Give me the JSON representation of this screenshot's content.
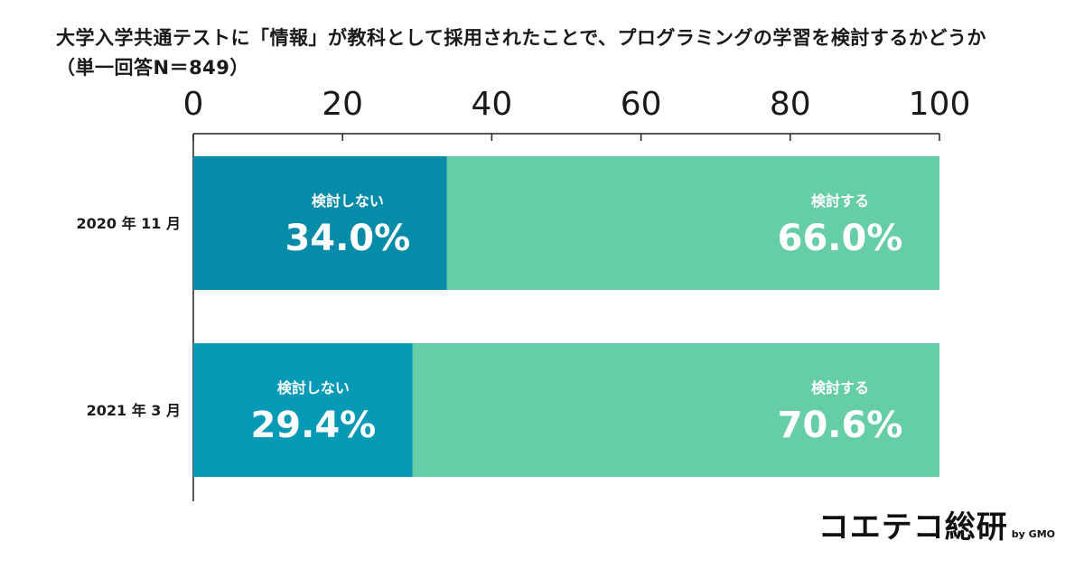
{
  "title": {
    "line1": "大学入学共通テストに「情報」が教科として採用されたことで、プログラミングの学習を検討するかどうか",
    "line2": "（単一回答N＝849）"
  },
  "brand": {
    "logo_text": "コエテコ総研",
    "byline": "by GMO"
  },
  "colors": {
    "not_consider_2020": "#068ba8",
    "not_consider_2021": "#079ab7",
    "consider": "#66cea7",
    "axis": "#222222"
  },
  "chart_data": {
    "type": "bar",
    "orientation": "horizontal",
    "stacked": true,
    "categories": [
      "2020 年 11 月",
      "2021 年 3 月"
    ],
    "series": [
      {
        "name": "検討しない",
        "values": [
          34.0,
          29.4
        ]
      },
      {
        "name": "検討する",
        "values": [
          66.0,
          70.6
        ]
      }
    ],
    "value_labels": [
      [
        "34.0%",
        "29.4%"
      ],
      [
        "66.0%",
        "70.6%"
      ]
    ],
    "xlim": [
      0,
      100
    ],
    "xticks": [
      0,
      20,
      40,
      60,
      80,
      100
    ],
    "axis_position": "top",
    "grid": false,
    "legend": "none"
  }
}
